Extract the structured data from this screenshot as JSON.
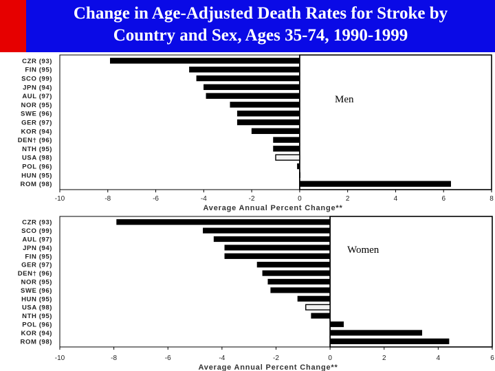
{
  "header": {
    "title_line1": "Change in Age-Adjusted Death Rates for Stroke  by",
    "title_line2": "Country and Sex, Ages 35-74, 1990-1999",
    "bg_color": "#0a0ae6",
    "accent_color": "#e60000"
  },
  "chart_data": [
    {
      "type": "bar",
      "orientation": "horizontal",
      "title": "Change in Age-Adjusted Death Rates for Stroke by Country and Sex, Ages 35-74, 1990-1999",
      "panel_label": "Men",
      "xlabel": "Average Annual Percent Change**",
      "xlim": [
        -10,
        8
      ],
      "xticks": [
        -10,
        -8,
        -6,
        -4,
        -2,
        0,
        2,
        4,
        6,
        8
      ],
      "categories": [
        "CZR (93)",
        "FIN (95)",
        "SCO (99)",
        "JPN (94)",
        "AUL (97)",
        "NOR (95)",
        "SWE (96)",
        "GER (97)",
        "KOR (94)",
        "DEN† (96)",
        "NTH (95)",
        "USA (98)",
        "POL (96)",
        "HUN (95)",
        "ROM (98)"
      ],
      "values": [
        -7.9,
        -4.6,
        -4.3,
        -4.0,
        -3.9,
        -2.9,
        -2.6,
        -2.6,
        -2.0,
        -1.1,
        -1.1,
        -1.0,
        -0.1,
        0.0,
        6.3
      ],
      "highlight": "USA (98)",
      "highlight_color": "#f2f2f2",
      "bar_color": "#000000"
    },
    {
      "type": "bar",
      "orientation": "horizontal",
      "panel_label": "Women",
      "xlabel": "Average Annual Percent Change**",
      "xlim": [
        -10,
        6
      ],
      "xticks": [
        -10,
        -8,
        -6,
        -4,
        -2,
        0,
        2,
        4,
        6
      ],
      "categories": [
        "CZR (93)",
        "SCO (99)",
        "AUL (97)",
        "JPN (94)",
        "FIN (95)",
        "GER (97)",
        "DEN† (96)",
        "NOR (95)",
        "SWE (96)",
        "HUN (95)",
        "USA (98)",
        "NTH (95)",
        "POL (96)",
        "KOR (94)",
        "ROM (98)"
      ],
      "values": [
        -7.9,
        -4.7,
        -4.3,
        -3.9,
        -3.9,
        -2.7,
        -2.5,
        -2.3,
        -2.2,
        -1.2,
        -0.9,
        -0.7,
        0.5,
        3.4,
        4.4
      ],
      "highlight": "USA (98)",
      "highlight_color": "#f2f2f2",
      "bar_color": "#000000"
    }
  ]
}
